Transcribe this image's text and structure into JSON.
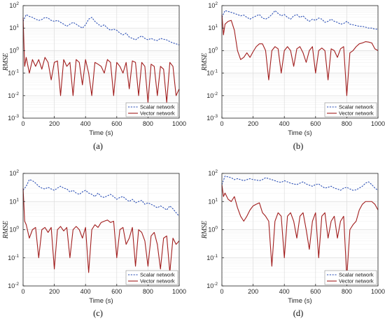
{
  "colors": {
    "scalar": "#2b4fb5",
    "vector": "#a11d1d",
    "grid": "#dcdcdc",
    "axis": "#262626"
  },
  "chart_data": [
    {
      "panel": "(a)",
      "type": "line",
      "xlabel": "Time (s)",
      "ylabel": "RMSE",
      "xlim": [
        0,
        1000
      ],
      "ylim": [
        0.001,
        100
      ],
      "yscale": "log",
      "grid": true,
      "legend": "bottom-right",
      "xticks": [
        "0",
        "200",
        "400",
        "600",
        "800",
        "1000"
      ],
      "yticks": [
        {
          "m": "10",
          "e": "-3"
        },
        {
          "m": "10",
          "e": "-2"
        },
        {
          "m": "10",
          "e": "-1"
        },
        {
          "m": "10",
          "e": "0"
        },
        {
          "m": "10",
          "e": "1"
        },
        {
          "m": "10",
          "e": "2"
        }
      ],
      "series": [
        {
          "name": "Scalar network",
          "style": "dashed",
          "x": [
            0,
            20,
            40,
            60,
            80,
            100,
            120,
            140,
            160,
            180,
            200,
            220,
            240,
            260,
            280,
            300,
            320,
            340,
            360,
            380,
            400,
            420,
            440,
            460,
            480,
            500,
            520,
            540,
            560,
            580,
            600,
            620,
            640,
            660,
            680,
            700,
            720,
            740,
            760,
            780,
            800,
            820,
            840,
            860,
            880,
            900,
            920,
            940,
            960,
            980,
            1000
          ],
          "y": [
            20,
            40,
            33,
            30,
            25,
            22,
            24,
            30,
            28,
            22,
            20,
            22,
            18,
            15,
            12,
            15,
            18,
            15,
            12,
            10,
            14,
            25,
            30,
            20,
            15,
            12,
            14,
            10,
            8,
            9,
            8,
            6,
            5,
            6,
            4,
            3.5,
            3,
            3.8,
            4.5,
            3.5,
            3,
            3.5,
            3,
            2.8,
            3.5,
            3.2,
            3,
            2.5,
            2.2,
            2,
            1.8
          ]
        },
        {
          "name": "Vector network",
          "style": "solid",
          "x": [
            0,
            10,
            20,
            40,
            60,
            80,
            100,
            120,
            140,
            160,
            180,
            200,
            220,
            240,
            260,
            280,
            300,
            320,
            340,
            360,
            380,
            400,
            420,
            440,
            460,
            480,
            500,
            520,
            540,
            560,
            580,
            600,
            620,
            640,
            660,
            680,
            700,
            720,
            740,
            760,
            780,
            800,
            820,
            840,
            860,
            880,
            900,
            920,
            940,
            960,
            980,
            1000
          ],
          "y": [
            30,
            0.2,
            0.5,
            0.1,
            0.4,
            0.2,
            0.4,
            0.15,
            0.5,
            0.3,
            0.05,
            0.3,
            0.35,
            0.01,
            0.4,
            0.2,
            0.3,
            0.01,
            0.4,
            0.3,
            0.03,
            0.4,
            0.1,
            0.01,
            0.3,
            0.25,
            0.2,
            0.1,
            0.4,
            0.3,
            0.01,
            0.3,
            0.2,
            0.1,
            0.3,
            0.02,
            0.35,
            0.3,
            0.01,
            0.3,
            0.2,
            0.005,
            0.25,
            0.2,
            0.01,
            0.2,
            0.15,
            0.005,
            0.3,
            0.2,
            0.01,
            0.02
          ]
        }
      ]
    },
    {
      "panel": "(b)",
      "type": "line",
      "xlabel": "Time (s)",
      "ylabel": "RMSE",
      "xlim": [
        0,
        1000
      ],
      "ylim": [
        0.001,
        100
      ],
      "yscale": "log",
      "grid": true,
      "legend": "bottom-right",
      "xticks": [
        "0",
        "200",
        "400",
        "600",
        "800",
        "1000"
      ],
      "yticks": [
        {
          "m": "10",
          "e": "-3"
        },
        {
          "m": "10",
          "e": "-2"
        },
        {
          "m": "10",
          "e": "-1"
        },
        {
          "m": "10",
          "e": "0"
        },
        {
          "m": "10",
          "e": "1"
        },
        {
          "m": "10",
          "e": "2"
        }
      ],
      "series": [
        {
          "name": "Scalar network",
          "style": "dashed",
          "x": [
            0,
            20,
            40,
            60,
            80,
            100,
            120,
            140,
            160,
            180,
            200,
            220,
            240,
            260,
            280,
            300,
            320,
            340,
            360,
            380,
            400,
            420,
            440,
            460,
            480,
            500,
            520,
            540,
            560,
            580,
            600,
            620,
            640,
            660,
            680,
            700,
            720,
            740,
            760,
            780,
            800,
            820,
            840,
            860,
            880,
            900,
            920,
            940,
            960,
            980,
            1000
          ],
          "y": [
            30,
            60,
            55,
            50,
            45,
            40,
            35,
            38,
            30,
            25,
            30,
            35,
            40,
            28,
            25,
            30,
            40,
            60,
            45,
            35,
            40,
            30,
            25,
            35,
            40,
            30,
            35,
            25,
            20,
            25,
            22,
            28,
            25,
            18,
            20,
            25,
            20,
            18,
            15,
            16,
            20,
            15,
            14,
            13,
            12,
            12,
            11,
            10,
            10,
            9,
            9
          ]
        },
        {
          "name": "Vector network",
          "style": "solid",
          "x": [
            0,
            10,
            20,
            40,
            60,
            80,
            100,
            120,
            140,
            160,
            180,
            200,
            220,
            240,
            260,
            280,
            300,
            320,
            340,
            360,
            380,
            400,
            420,
            440,
            460,
            480,
            500,
            520,
            540,
            560,
            580,
            600,
            620,
            640,
            660,
            680,
            700,
            720,
            740,
            760,
            780,
            800,
            820,
            840,
            860,
            880,
            900,
            920,
            940,
            960,
            980,
            1000
          ],
          "y": [
            40,
            5,
            15,
            20,
            22,
            8,
            1,
            0.4,
            0.5,
            0.8,
            0.5,
            0.9,
            1.5,
            2,
            2,
            1,
            0.05,
            1,
            1.5,
            1.2,
            0.1,
            1,
            1.5,
            1,
            0.2,
            1.2,
            1.5,
            0.8,
            0.3,
            1,
            1.5,
            0.1,
            1,
            1.3,
            1,
            0.05,
            1.2,
            1,
            0.5,
            1.2,
            1.5,
            0.01,
            0.8,
            1,
            1.5,
            2,
            2.2,
            2.5,
            2.4,
            2.2,
            1.2,
            1
          ]
        }
      ]
    },
    {
      "panel": "(c)",
      "type": "line",
      "xlabel": "Time (s)",
      "ylabel": "RMSE",
      "xlim": [
        0,
        1000
      ],
      "ylim": [
        0.01,
        100
      ],
      "yscale": "log",
      "grid": true,
      "legend": "bottom-right",
      "xticks": [
        "0",
        "200",
        "400",
        "600",
        "800",
        "1000"
      ],
      "yticks": [
        {
          "m": "10",
          "e": "-2"
        },
        {
          "m": "10",
          "e": "-1"
        },
        {
          "m": "10",
          "e": "0"
        },
        {
          "m": "10",
          "e": "1"
        },
        {
          "m": "10",
          "e": "2"
        }
      ],
      "series": [
        {
          "name": "Scalar network",
          "style": "dashed",
          "x": [
            0,
            20,
            40,
            60,
            80,
            100,
            120,
            140,
            160,
            180,
            200,
            220,
            240,
            260,
            280,
            300,
            320,
            340,
            360,
            380,
            400,
            420,
            440,
            460,
            480,
            500,
            520,
            540,
            560,
            580,
            600,
            620,
            640,
            660,
            680,
            700,
            720,
            740,
            760,
            780,
            800,
            820,
            840,
            860,
            880,
            900,
            920,
            940,
            960,
            980,
            1000
          ],
          "y": [
            25,
            35,
            60,
            55,
            45,
            35,
            30,
            28,
            32,
            28,
            25,
            30,
            35,
            30,
            28,
            22,
            25,
            20,
            18,
            22,
            25,
            20,
            18,
            15,
            20,
            15,
            14,
            16,
            18,
            15,
            12,
            14,
            15,
            12,
            10,
            12,
            9,
            10,
            11,
            8,
            9,
            8,
            7,
            6,
            7,
            6,
            5,
            7,
            5.5,
            4,
            3
          ]
        },
        {
          "name": "Vector network",
          "style": "solid",
          "x": [
            0,
            10,
            20,
            40,
            60,
            80,
            100,
            120,
            140,
            160,
            180,
            200,
            220,
            240,
            260,
            280,
            300,
            320,
            340,
            360,
            380,
            400,
            420,
            440,
            460,
            480,
            500,
            520,
            540,
            560,
            580,
            600,
            620,
            640,
            660,
            680,
            700,
            720,
            740,
            760,
            780,
            800,
            820,
            840,
            860,
            880,
            900,
            920,
            940,
            960,
            980,
            1000
          ],
          "y": [
            30,
            2,
            1.5,
            0.5,
            1,
            1.2,
            0.1,
            1,
            1.2,
            0.8,
            1.2,
            0.04,
            1,
            1.3,
            0.9,
            1.2,
            0.1,
            1,
            1.3,
            1,
            0.5,
            1.2,
            0.03,
            1,
            1.5,
            1.2,
            1.8,
            2,
            2.2,
            1.8,
            2,
            0.1,
            1,
            1.2,
            0.3,
            0.5,
            1.2,
            0.05,
            1,
            0.8,
            0.4,
            0.05,
            0.6,
            0.8,
            0.3,
            0.04,
            0.5,
            0.6,
            0.03,
            0.5,
            0.3,
            0.4
          ]
        }
      ]
    },
    {
      "panel": "(d)",
      "type": "line",
      "xlabel": "Time (s)",
      "ylabel": "RMSE",
      "xlim": [
        0,
        1000
      ],
      "ylim": [
        0.01,
        100
      ],
      "yscale": "log",
      "grid": true,
      "legend": "bottom-right",
      "xticks": [
        "0",
        "200",
        "400",
        "600",
        "800",
        "1000"
      ],
      "yticks": [
        {
          "m": "10",
          "e": "-2"
        },
        {
          "m": "10",
          "e": "-1"
        },
        {
          "m": "10",
          "e": "0"
        },
        {
          "m": "10",
          "e": "1"
        },
        {
          "m": "10",
          "e": "2"
        }
      ],
      "series": [
        {
          "name": "Scalar network",
          "style": "dashed",
          "x": [
            0,
            20,
            40,
            60,
            80,
            100,
            120,
            140,
            160,
            180,
            200,
            220,
            240,
            260,
            280,
            300,
            320,
            340,
            360,
            380,
            400,
            420,
            440,
            460,
            480,
            500,
            520,
            540,
            560,
            580,
            600,
            620,
            640,
            660,
            680,
            700,
            720,
            740,
            760,
            780,
            800,
            820,
            840,
            860,
            880,
            900,
            920,
            940,
            960,
            980,
            1000
          ],
          "y": [
            40,
            80,
            75,
            70,
            60,
            65,
            60,
            55,
            60,
            65,
            60,
            58,
            55,
            60,
            70,
            65,
            60,
            55,
            50,
            48,
            55,
            50,
            45,
            42,
            40,
            45,
            50,
            42,
            38,
            35,
            40,
            42,
            35,
            30,
            32,
            35,
            30,
            28,
            25,
            30,
            32,
            28,
            25,
            26,
            30,
            35,
            45,
            50,
            40,
            30,
            25
          ]
        },
        {
          "name": "Vector network",
          "style": "solid",
          "x": [
            0,
            10,
            20,
            40,
            60,
            80,
            100,
            120,
            140,
            160,
            180,
            200,
            220,
            240,
            260,
            280,
            300,
            320,
            340,
            360,
            380,
            400,
            420,
            440,
            460,
            480,
            500,
            520,
            540,
            560,
            580,
            600,
            620,
            640,
            660,
            680,
            700,
            720,
            740,
            760,
            780,
            800,
            820,
            840,
            860,
            880,
            900,
            920,
            940,
            960,
            980,
            1000
          ],
          "y": [
            40,
            15,
            20,
            12,
            10,
            15,
            6,
            3,
            2,
            3,
            5,
            7,
            8,
            9,
            4,
            3,
            2,
            0.05,
            2,
            4,
            3,
            0.1,
            3,
            4,
            2,
            0.5,
            3,
            4,
            1,
            0.2,
            2,
            4,
            0.1,
            3,
            4,
            0.5,
            2,
            3,
            0.5,
            2,
            3,
            0.02,
            1,
            1.5,
            2,
            5,
            8,
            10,
            10,
            10,
            8,
            5
          ]
        }
      ]
    }
  ]
}
